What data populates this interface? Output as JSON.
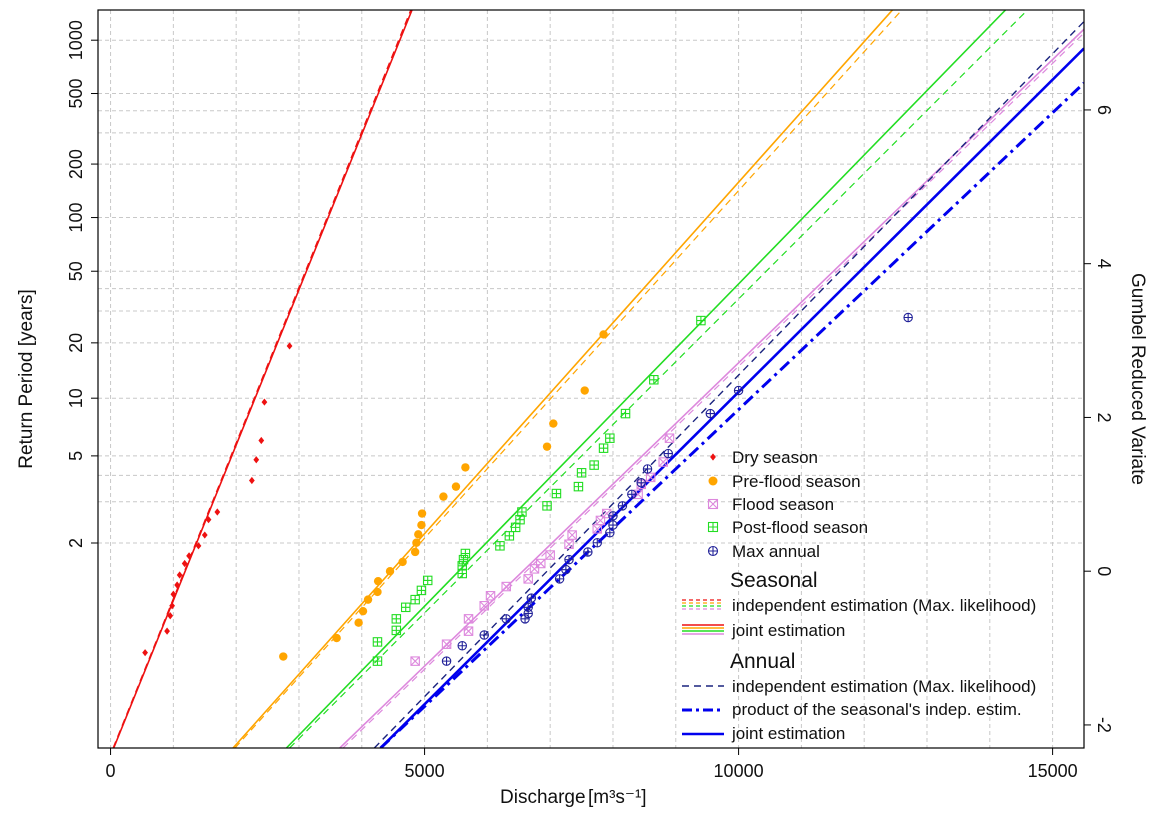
{
  "chart_data": {
    "type": "scatter",
    "xlabel": "Discharge",
    "xlabel_unit": "[m³s⁻¹]",
    "ylabel": "Return Period [years]",
    "y2label": "Gumbel Reduced Variate",
    "xlim": [
      -200,
      15500
    ],
    "y2lim": [
      -2.3,
      7.3
    ],
    "y_scale": "gumbel (return period)",
    "grid": true,
    "x_ticks": [
      0,
      5000,
      10000,
      15000
    ],
    "x_tick_labels": [
      "0",
      "5000",
      "10000",
      "15000"
    ],
    "y_ticks": [
      2,
      5,
      10,
      20,
      50,
      100,
      200,
      500,
      1000
    ],
    "y_tick_labels": [
      "2",
      "5",
      "10",
      "20",
      "50",
      "100",
      "200",
      "500",
      "1000"
    ],
    "y2_ticks": [
      -2,
      0,
      2,
      4,
      6
    ],
    "y2_tick_labels": [
      "-2",
      "0",
      "2",
      "4",
      "6"
    ],
    "legend_position": "bottom-right",
    "series": [
      {
        "name": "Dry season",
        "marker": "diamond",
        "color": "#ee1111",
        "points": [
          [
            550,
            -1.06
          ],
          [
            900,
            -0.78
          ],
          [
            950,
            -0.58
          ],
          [
            980,
            -0.45
          ],
          [
            1000,
            -0.3
          ],
          [
            1060,
            -0.18
          ],
          [
            1100,
            -0.05
          ],
          [
            1180,
            0.1
          ],
          [
            1250,
            0.2
          ],
          [
            1400,
            0.33
          ],
          [
            1500,
            0.47
          ],
          [
            1560,
            0.67
          ],
          [
            1700,
            0.77
          ],
          [
            2250,
            1.18
          ],
          [
            2320,
            1.45
          ],
          [
            2400,
            1.7
          ],
          [
            2450,
            2.2
          ],
          [
            2850,
            2.93
          ]
        ]
      },
      {
        "name": "Pre-flood season",
        "marker": "circle",
        "color": "#ffa500",
        "points": [
          [
            2750,
            -1.11
          ],
          [
            3600,
            -0.87
          ],
          [
            3950,
            -0.67
          ],
          [
            4020,
            -0.52
          ],
          [
            4100,
            -0.37
          ],
          [
            4250,
            -0.27
          ],
          [
            4260,
            -0.13
          ],
          [
            4450,
            0.0
          ],
          [
            4650,
            0.12
          ],
          [
            4850,
            0.25
          ],
          [
            4870,
            0.37
          ],
          [
            4900,
            0.48
          ],
          [
            4950,
            0.6
          ],
          [
            4960,
            0.75
          ],
          [
            5300,
            0.97
          ],
          [
            5500,
            1.1
          ],
          [
            5650,
            1.35
          ],
          [
            6950,
            1.62
          ],
          [
            7050,
            1.92
          ],
          [
            7550,
            2.35
          ],
          [
            7850,
            3.08
          ]
        ]
      },
      {
        "name": "Post-flood season",
        "marker": "square-plus",
        "color": "#22dd22",
        "points": [
          [
            4250,
            -1.17
          ],
          [
            4250,
            -0.92
          ],
          [
            4550,
            -0.77
          ],
          [
            4550,
            -0.62
          ],
          [
            4700,
            -0.47
          ],
          [
            4850,
            -0.37
          ],
          [
            4950,
            -0.25
          ],
          [
            5050,
            -0.12
          ],
          [
            5600,
            -0.03
          ],
          [
            5600,
            0.07
          ],
          [
            5620,
            0.15
          ],
          [
            5650,
            0.23
          ],
          [
            6200,
            0.33
          ],
          [
            6350,
            0.46
          ],
          [
            6450,
            0.57
          ],
          [
            6520,
            0.67
          ],
          [
            6550,
            0.77
          ],
          [
            6950,
            0.85
          ],
          [
            7100,
            1.01
          ],
          [
            7450,
            1.1
          ],
          [
            7500,
            1.28
          ],
          [
            7700,
            1.38
          ],
          [
            7850,
            1.6
          ],
          [
            7950,
            1.73
          ],
          [
            8200,
            2.05
          ],
          [
            8650,
            2.49
          ],
          [
            9400,
            3.26
          ]
        ]
      },
      {
        "name": "Flood season",
        "marker": "square-x",
        "color": "#dd88dd",
        "points": [
          [
            4850,
            -1.17
          ],
          [
            5350,
            -0.95
          ],
          [
            5700,
            -0.78
          ],
          [
            5700,
            -0.62
          ],
          [
            5950,
            -0.45
          ],
          [
            6050,
            -0.32
          ],
          [
            6300,
            -0.2
          ],
          [
            6650,
            -0.1
          ],
          [
            6750,
            0.03
          ],
          [
            6850,
            0.1
          ],
          [
            7000,
            0.21
          ],
          [
            7300,
            0.35
          ],
          [
            7350,
            0.47
          ],
          [
            7750,
            0.55
          ],
          [
            7800,
            0.66
          ],
          [
            7900,
            0.75
          ],
          [
            8400,
            1.0
          ],
          [
            8450,
            1.13
          ],
          [
            8600,
            1.22
          ],
          [
            8800,
            1.42
          ],
          [
            8900,
            1.73
          ]
        ]
      },
      {
        "name": "Max annual",
        "marker": "circle-plus",
        "color": "#222299",
        "points": [
          [
            5350,
            -1.17
          ],
          [
            5600,
            -0.97
          ],
          [
            5950,
            -0.83
          ],
          [
            6300,
            -0.62
          ],
          [
            6600,
            -0.62
          ],
          [
            6650,
            -0.55
          ],
          [
            6650,
            -0.47
          ],
          [
            6700,
            -0.35
          ],
          [
            7150,
            -0.1
          ],
          [
            7250,
            0.02
          ],
          [
            7300,
            0.15
          ],
          [
            7600,
            0.25
          ],
          [
            7750,
            0.37
          ],
          [
            7950,
            0.5
          ],
          [
            8000,
            0.6
          ],
          [
            8000,
            0.72
          ],
          [
            8150,
            0.85
          ],
          [
            8300,
            1.0
          ],
          [
            8450,
            1.15
          ],
          [
            8550,
            1.33
          ],
          [
            8880,
            1.53
          ],
          [
            9550,
            2.05
          ],
          [
            10000,
            2.35
          ],
          [
            12700,
            3.3
          ]
        ]
      }
    ],
    "lines": [
      {
        "legend_group": "Seasonal",
        "name": "joint estimation (Dry season)",
        "color": "#ee1111",
        "style": "solid",
        "width": 1.6,
        "x": [
          50,
          4800
        ],
        "y": [
          -2.3,
          7.3
        ]
      },
      {
        "legend_group": "Seasonal",
        "name": "independent estimation (Dry season)",
        "color": "#ee1111",
        "style": "dashed",
        "width": 1.2,
        "x": [
          40,
          4780
        ],
        "y": [
          -2.3,
          7.3
        ]
      },
      {
        "legend_group": "Seasonal",
        "name": "joint estimation (Pre-flood season)",
        "color": "#ffa500",
        "style": "solid",
        "width": 1.6,
        "x": [
          1950,
          12450
        ],
        "y": [
          -2.3,
          7.3
        ]
      },
      {
        "legend_group": "Seasonal",
        "name": "independent estimation (Pre-flood season)",
        "color": "#ffa500",
        "style": "dashed",
        "width": 1.2,
        "x": [
          1980,
          12600
        ],
        "y": [
          -2.3,
          7.3
        ]
      },
      {
        "legend_group": "Seasonal",
        "name": "joint estimation (Post-flood season)",
        "color": "#22dd22",
        "style": "solid",
        "width": 1.6,
        "x": [
          2800,
          14250
        ],
        "y": [
          -2.3,
          7.3
        ]
      },
      {
        "legend_group": "Seasonal",
        "name": "independent estimation (Post-flood season)",
        "color": "#22dd22",
        "style": "dashed",
        "width": 1.2,
        "x": [
          2850,
          14600
        ],
        "y": [
          -2.3,
          7.3
        ]
      },
      {
        "legend_group": "Seasonal",
        "name": "joint estimation (Flood season)",
        "color": "#dd88dd",
        "style": "solid",
        "width": 1.6,
        "x": [
          3650,
          15500
        ],
        "y": [
          -2.3,
          7.05
        ]
      },
      {
        "legend_group": "Seasonal",
        "name": "independent estimation (Flood season)",
        "color": "#dd88dd",
        "style": "dashed",
        "width": 1.2,
        "x": [
          3700,
          15500
        ],
        "y": [
          -2.3,
          7.0
        ]
      },
      {
        "legend_group": "Annual",
        "name": "independent estimation (Max. likelihood)",
        "color": "#1a237e",
        "style": "dashed",
        "width": 1.4,
        "x": [
          4200,
          15500
        ],
        "y": [
          -2.3,
          7.15
        ]
      },
      {
        "legend_group": "Annual",
        "name": "product of the seasonal's indep. estim.",
        "color": "#0000ee",
        "style": "dashdot",
        "width": 3,
        "x": [
          4300,
          15500
        ],
        "y": [
          -2.3,
          6.35
        ]
      },
      {
        "legend_group": "Annual",
        "name": "joint estimation",
        "color": "#0000ee",
        "style": "solid",
        "width": 2.6,
        "x": [
          4300,
          15500
        ],
        "y": [
          -2.3,
          6.8
        ]
      }
    ],
    "legend": {
      "markers": [
        "Dry season",
        "Pre-flood season",
        "Flood season",
        "Post-flood season",
        "Max annual"
      ],
      "seasonal_title": "Seasonal",
      "seasonal_items": [
        "independent estimation (Max. likelihood)",
        "joint estimation"
      ],
      "annual_title": "Annual",
      "annual_items": [
        "independent estimation (Max. likelihood)",
        "product of the seasonal's indep. estim.",
        "joint estimation"
      ]
    }
  }
}
